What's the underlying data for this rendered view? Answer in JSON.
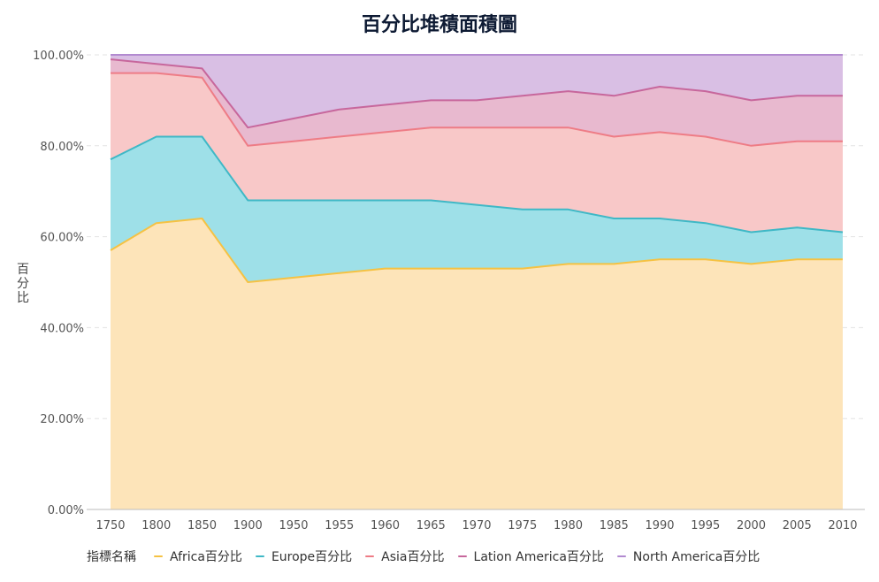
{
  "chart_data": {
    "type": "area",
    "stacked": true,
    "title": "百分比堆積面積圖",
    "ylabel": "百分比",
    "xlabel": "",
    "ylim": [
      0,
      100
    ],
    "yticks": [
      "0.00%",
      "20.00%",
      "40.00%",
      "60.00%",
      "80.00%",
      "100.00%"
    ],
    "ytick_values": [
      0,
      20,
      40,
      60,
      80,
      100
    ],
    "categories": [
      "1750",
      "1800",
      "1850",
      "1900",
      "1950",
      "1955",
      "1960",
      "1965",
      "1970",
      "1975",
      "1980",
      "1985",
      "1990",
      "1995",
      "2000",
      "2005",
      "2010"
    ],
    "legend_title": "指標名稱",
    "legend_position": "bottom-left",
    "grid": "horizontal-dashed",
    "series": [
      {
        "name": "Africa百分比",
        "color": "#f5c243",
        "fill": "#fde4b9",
        "cumulative": [
          57,
          63,
          64,
          50,
          51,
          52,
          53,
          53,
          53,
          53,
          54,
          54,
          55,
          55,
          54,
          55,
          55
        ]
      },
      {
        "name": "Europe百分比",
        "color": "#3fb8c6",
        "fill": "#9ee0e8",
        "cumulative": [
          77,
          82,
          82,
          68,
          68,
          68,
          68,
          68,
          67,
          66,
          66,
          64,
          64,
          63,
          61,
          62,
          61
        ]
      },
      {
        "name": "Asia百分比",
        "color": "#ee7c86",
        "fill": "#f8c8c8",
        "cumulative": [
          96,
          96,
          95,
          80,
          81,
          82,
          83,
          84,
          84,
          84,
          84,
          82,
          83,
          82,
          80,
          81,
          81
        ]
      },
      {
        "name": "Lation America百分比",
        "color": "#c7679c",
        "fill": "#e8b9cf",
        "cumulative": [
          99,
          98,
          97,
          84,
          86,
          88,
          89,
          90,
          90,
          91,
          92,
          91,
          93,
          92,
          90,
          91,
          91
        ]
      },
      {
        "name": "North America百分比",
        "color": "#b28ad0",
        "fill": "#d9bfe4",
        "cumulative": [
          100,
          100,
          100,
          100,
          100,
          100,
          100,
          100,
          100,
          100,
          100,
          100,
          100,
          100,
          100,
          100,
          100
        ]
      }
    ]
  }
}
